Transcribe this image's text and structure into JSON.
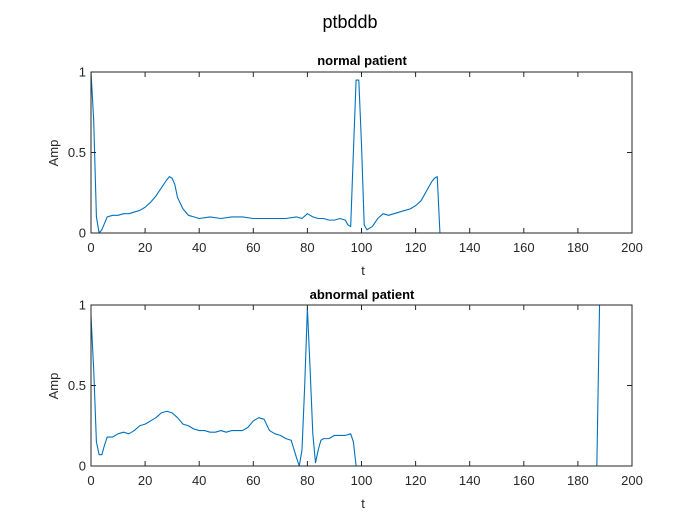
{
  "figure_title": "ptbddb",
  "chart_data": [
    {
      "type": "line",
      "title": "normal patient",
      "xlabel": "t",
      "ylabel": "Amp",
      "xlim": [
        0,
        200
      ],
      "ylim": [
        0,
        1
      ],
      "xticks": [
        "0",
        "20",
        "40",
        "60",
        "80",
        "100",
        "120",
        "140",
        "160",
        "180",
        "200"
      ],
      "yticks": [
        "0",
        "0.5",
        "1"
      ],
      "grid": false,
      "color": "#0072BD",
      "series": [
        {
          "x": [
            0,
            1,
            2,
            3,
            4,
            5,
            6,
            8,
            10,
            12,
            14,
            16,
            18,
            20,
            22,
            24,
            26,
            28,
            29,
            30,
            31,
            32,
            34,
            36,
            38,
            40,
            44,
            48,
            52,
            56,
            60,
            64,
            68,
            72,
            76,
            78,
            80,
            82,
            84,
            86,
            88,
            90,
            92,
            94,
            95,
            96,
            97,
            98,
            99,
            100,
            101,
            102,
            104,
            106,
            108,
            110,
            112,
            114,
            116,
            118,
            120,
            122,
            124,
            126,
            127,
            128,
            129,
            130,
            140,
            150,
            160,
            170,
            180,
            188
          ],
          "y": [
            1.0,
            0.7,
            0.1,
            0.0,
            0.02,
            0.06,
            0.1,
            0.11,
            0.11,
            0.12,
            0.12,
            0.13,
            0.14,
            0.16,
            0.19,
            0.23,
            0.28,
            0.33,
            0.35,
            0.34,
            0.3,
            0.22,
            0.15,
            0.11,
            0.1,
            0.09,
            0.1,
            0.09,
            0.1,
            0.1,
            0.09,
            0.09,
            0.09,
            0.09,
            0.1,
            0.09,
            0.12,
            0.1,
            0.09,
            0.09,
            0.08,
            0.08,
            0.09,
            0.08,
            0.05,
            0.04,
            0.5,
            0.95,
            0.95,
            0.55,
            0.05,
            0.02,
            0.04,
            0.09,
            0.12,
            0.11,
            0.12,
            0.13,
            0.14,
            0.15,
            0.17,
            0.2,
            0.26,
            0.32,
            0.34,
            0.35,
            0.0,
            0.0,
            0.0,
            0.0,
            0.0,
            0.0,
            0.0,
            0.0
          ]
        }
      ]
    },
    {
      "type": "line",
      "title": "abnormal patient",
      "xlabel": "t",
      "ylabel": "Amp",
      "xlim": [
        0,
        200
      ],
      "ylim": [
        0,
        1
      ],
      "xticks": [
        "0",
        "20",
        "40",
        "60",
        "80",
        "100",
        "120",
        "140",
        "160",
        "180",
        "200"
      ],
      "yticks": [
        "0",
        "0.5",
        "1"
      ],
      "grid": false,
      "color": "#0072BD",
      "series": [
        {
          "x": [
            0,
            1,
            2,
            3,
            4,
            5,
            6,
            8,
            10,
            12,
            14,
            16,
            18,
            20,
            22,
            24,
            26,
            28,
            30,
            32,
            34,
            36,
            38,
            40,
            42,
            44,
            46,
            48,
            50,
            52,
            54,
            56,
            58,
            60,
            62,
            64,
            66,
            68,
            70,
            72,
            74,
            76,
            77,
            78,
            79,
            80,
            81,
            82,
            83,
            84,
            85,
            86,
            88,
            90,
            92,
            94,
            96,
            97,
            98,
            100,
            120,
            140,
            160,
            180,
            186,
            187,
            188
          ],
          "y": [
            0.93,
            0.6,
            0.15,
            0.07,
            0.07,
            0.13,
            0.18,
            0.18,
            0.2,
            0.21,
            0.2,
            0.22,
            0.25,
            0.26,
            0.28,
            0.3,
            0.33,
            0.34,
            0.33,
            0.3,
            0.26,
            0.25,
            0.23,
            0.22,
            0.22,
            0.21,
            0.21,
            0.22,
            0.21,
            0.22,
            0.22,
            0.22,
            0.24,
            0.28,
            0.3,
            0.29,
            0.22,
            0.2,
            0.19,
            0.17,
            0.16,
            0.05,
            0.0,
            0.1,
            0.5,
            0.98,
            0.6,
            0.2,
            0.02,
            0.1,
            0.16,
            0.17,
            0.17,
            0.19,
            0.19,
            0.19,
            0.2,
            0.15,
            0.0,
            0.0,
            0.0,
            0.0,
            0.0,
            0.0,
            0.0,
            0.0,
            1.0
          ]
        }
      ]
    }
  ]
}
